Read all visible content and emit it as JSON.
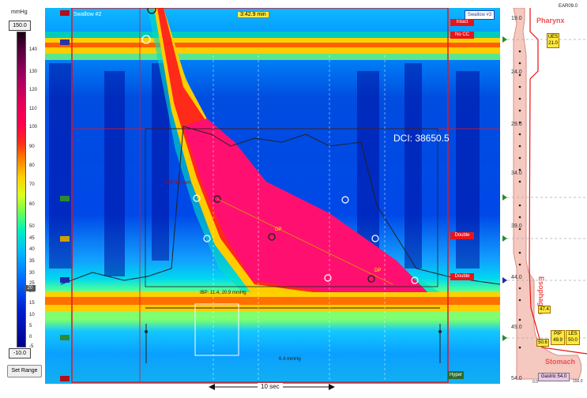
{
  "scale": {
    "unit": "mmHg",
    "max": "150.0",
    "min": "-10.0",
    "ticks": [
      "140",
      "130",
      "120",
      "110",
      "100",
      "90",
      "80",
      "70",
      "60",
      "50",
      "45",
      "40",
      "35",
      "30",
      "25",
      "20",
      "15",
      "10",
      "5",
      "0",
      "-5"
    ],
    "current_value": "20",
    "set_range_label": "Set Range"
  },
  "plot": {
    "swallow_prev": "Swallow #2",
    "swallow_next": "Swallow #3",
    "time_marker": "3:42.9 min",
    "dci": "DCI: 38650.5",
    "cdp": "CDP 4.0 mm",
    "ibp": "IBP: 11.4, 20.9 mmHg",
    "baseline_pressure": "6.4 mmHg",
    "scale_bar": "10 sec",
    "status_labels": [
      "Intact",
      "No CC",
      "Double",
      "Double",
      "Hyper"
    ],
    "dp_marks": [
      "DP",
      "DP"
    ],
    "sensor_tags": [
      "UES",
      "LES",
      "UES",
      "LES"
    ]
  },
  "right_panel": {
    "file_id": "EAR09.0",
    "region_pharynx": "Pharynx",
    "region_esophagus": "Esophagus",
    "region_stomach": "Stomach",
    "depth_ticks": [
      "19.0",
      "24.0",
      "29.0",
      "34.0",
      "39.0",
      "44.0",
      "49.0",
      "54.0"
    ],
    "ues_box": [
      "UES",
      "21.0"
    ],
    "val_47_4": "47.4",
    "val_50_6": "50.6",
    "pip_box": [
      "PIP",
      "49.9"
    ],
    "les_box": [
      "LES",
      "50.0"
    ],
    "gastric": "Gastric 54.0",
    "scale_end": "150.0",
    "scale_zero": "0.0"
  },
  "colors": {
    "accent_red": "#e8141c",
    "marker_yellow": "#ffe840",
    "esophagus_fill": "#f5c8c0"
  }
}
